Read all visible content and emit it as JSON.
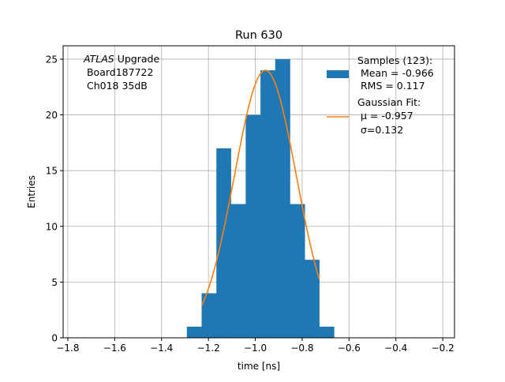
{
  "chart_data": {
    "type": "histogram",
    "title": "Run 630",
    "xlabel": "time [ns]",
    "ylabel": "Entries",
    "xlim": [
      -1.82,
      -0.15
    ],
    "ylim": [
      0,
      26.2
    ],
    "grid": true,
    "x_ticks": [
      -1.8,
      -1.6,
      -1.4,
      -1.2,
      -1.0,
      -0.8,
      -0.6,
      -0.4,
      -0.2
    ],
    "x_tick_labels": [
      "−1.8",
      "−1.6",
      "−1.4",
      "−1.2",
      "−1.0",
      "−0.8",
      "−0.6",
      "−0.4",
      "−0.2"
    ],
    "y_ticks": [
      0,
      5,
      10,
      15,
      20,
      25
    ],
    "y_tick_labels": [
      "0",
      "5",
      "10",
      "15",
      "20",
      "25"
    ],
    "bin_edges": [
      -1.292,
      -1.229,
      -1.166,
      -1.104,
      -1.041,
      -0.978,
      -0.915,
      -0.852,
      -0.789,
      -0.727,
      -0.664
    ],
    "bin_counts": [
      1,
      4,
      17,
      12,
      20,
      24,
      25,
      12,
      7,
      1
    ],
    "series": [
      {
        "name": "Samples (123):",
        "kind": "histogram",
        "color": "#1f77b4",
        "legend_lines": [
          "Samples (123):",
          " Mean = -0.966",
          " RMS = 0.117"
        ]
      },
      {
        "name": "Gaussian Fit:",
        "kind": "fit-curve",
        "color": "#ff7f0e",
        "amplitude": 24,
        "mu": -0.957,
        "sigma": 0.132,
        "x_range": [
          -1.229,
          -0.727
        ],
        "legend_lines": [
          "Gaussian Fit:",
          " μ = -0.957",
          " σ=0.132"
        ]
      }
    ],
    "annotation": {
      "italic": "ATLAS",
      "rest": " Upgrade",
      "line2": " Board187722",
      "line3": " Ch018 35dB"
    },
    "legend_position": "top-right"
  }
}
